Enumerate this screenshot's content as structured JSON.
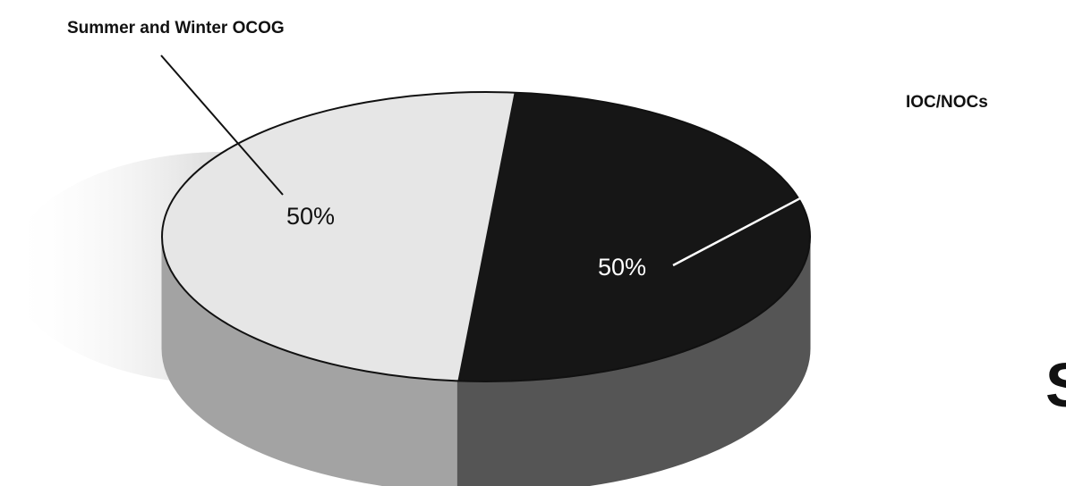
{
  "chart_data": {
    "type": "pie",
    "style": "3d",
    "title": "",
    "slices": [
      {
        "label": "Summer and Winter OCOG",
        "value": 50,
        "value_label": "50%",
        "top_color": "#e6e6e6",
        "side_color": "#a3a3a3",
        "text_color": "#111111",
        "leader_color": "#111111"
      },
      {
        "label": "IOC/NOCs",
        "value": 50,
        "value_label": "50%",
        "top_color": "#161616",
        "side_color": "#555555",
        "text_color": "#ffffff",
        "leader_color": "#ffffff"
      }
    ],
    "outline_color": "#111111"
  },
  "edge_fragment": "S"
}
